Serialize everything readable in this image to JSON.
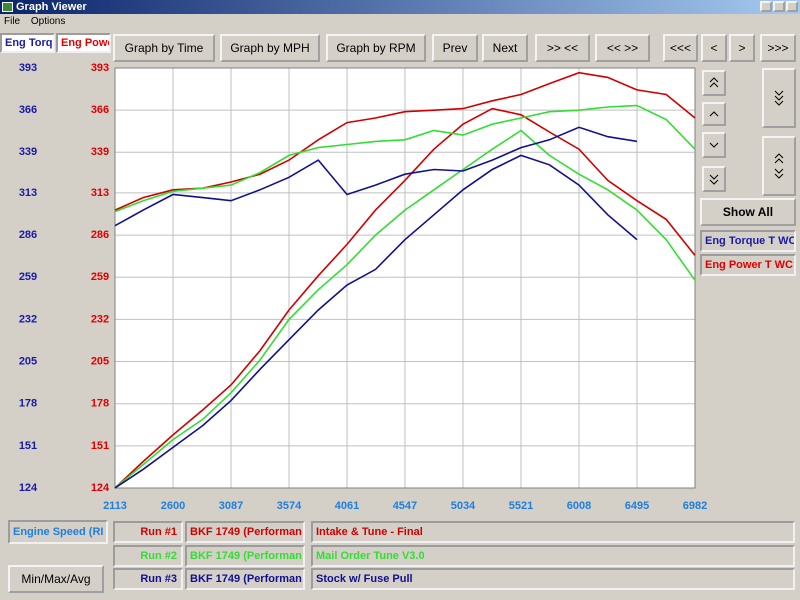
{
  "window": {
    "title": "Graph Viewer",
    "menu": [
      "File",
      "Options"
    ],
    "axis_headers": [
      "Eng Torq",
      "Eng Powe"
    ],
    "buttons": [
      "Graph by Time",
      "Graph by MPH",
      "Graph by RPM",
      "Prev",
      "Next",
      ">> <<",
      "<< >>",
      "<<<",
      "<",
      ">",
      ">>>"
    ],
    "show_all": "Show All",
    "channels": [
      "Eng Torque T WC",
      "Eng Power T WC"
    ],
    "x_channel": "Engine Speed (RI",
    "runs": [
      {
        "label": "Run #1",
        "vehicle": "BKF 1749 (Performan",
        "description": "Intake & Tune - Final",
        "color": "#d00000"
      },
      {
        "label": "Run #2",
        "vehicle": "BKF 1749 (Performan",
        "description": "Mail Order Tune V3.0",
        "color": "#33dd33"
      },
      {
        "label": "Run #3",
        "vehicle": "BKF 1749 (Performan",
        "description": "Stock w/ Fuse Pull",
        "color": "#10108f"
      }
    ],
    "stats_button": "Min/Max/Avg"
  },
  "chart_data": {
    "type": "line",
    "x": [
      2113,
      2350,
      2600,
      2850,
      3087,
      3330,
      3574,
      3820,
      4061,
      4300,
      4547,
      4790,
      5034,
      5280,
      5521,
      5760,
      6008,
      6250,
      6495,
      6740,
      6982
    ],
    "xlim": [
      2113,
      6982
    ],
    "xticks": [
      2113,
      2600,
      3087,
      3574,
      4061,
      4547,
      5034,
      5521,
      6008,
      6495,
      6982
    ],
    "ylim": [
      124,
      393
    ],
    "yticks": [
      124,
      151,
      178,
      205,
      232,
      259,
      286,
      313,
      339,
      366,
      393
    ],
    "y2lim": [
      124,
      393
    ],
    "y2ticks": [
      124,
      151,
      178,
      205,
      232,
      259,
      286,
      313,
      339,
      366,
      393
    ],
    "grid": true,
    "series": [
      {
        "color": "#d00000",
        "values": [
          302,
          310,
          315,
          316,
          320,
          325,
          334,
          347,
          358,
          361,
          365,
          366,
          367,
          372,
          376,
          383,
          390,
          387,
          379,
          376,
          361
        ]
      },
      {
        "color": "#d00000",
        "axis": "y2",
        "values": [
          124,
          141,
          158,
          174,
          190,
          212,
          238,
          260,
          280,
          302,
          321,
          341,
          357,
          367,
          363,
          352,
          341,
          321,
          308,
          296,
          273
        ]
      },
      {
        "color": "#33dd33",
        "values": [
          301,
          308,
          314,
          316,
          318,
          326,
          337,
          342,
          344,
          346,
          347,
          353,
          350,
          357,
          361,
          365,
          366,
          368,
          369,
          360,
          341
        ]
      },
      {
        "color": "#33dd33",
        "axis": "y2",
        "values": [
          124,
          139,
          155,
          168,
          185,
          206,
          232,
          251,
          267,
          286,
          302,
          315,
          328,
          341,
          353,
          337,
          325,
          315,
          302,
          283,
          257
        ]
      },
      {
        "color": "#10108f",
        "values": [
          292,
          302,
          312,
          310,
          308,
          315,
          323,
          334,
          312,
          318,
          325,
          328,
          327,
          334,
          342,
          347,
          355,
          349,
          346,
          null,
          null
        ]
      },
      {
        "color": "#10108f",
        "axis": "y2",
        "values": [
          124,
          136,
          150,
          164,
          180,
          200,
          219,
          238,
          254,
          264,
          283,
          299,
          315,
          328,
          337,
          331,
          318,
          299,
          283,
          null,
          null
        ]
      }
    ]
  }
}
